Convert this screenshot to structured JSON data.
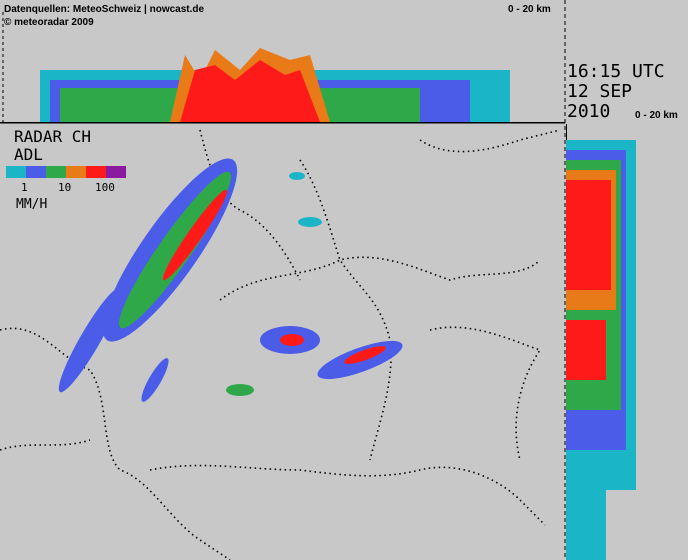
{
  "header": {
    "source": "Datenquellen: MeteoSchweiz | nowcast.de",
    "copyright": "© meteoradar 2009",
    "top_scale": "0 - 20 km"
  },
  "timestamp": {
    "time": "16:15 UTC",
    "date": "12 SEP",
    "year": "2010",
    "side_scale": "0 - 20 km"
  },
  "legend": {
    "title": "RADAR CH",
    "product": "ADL",
    "labels": [
      "1",
      "10",
      "100"
    ],
    "unit": "MM/H"
  }
}
